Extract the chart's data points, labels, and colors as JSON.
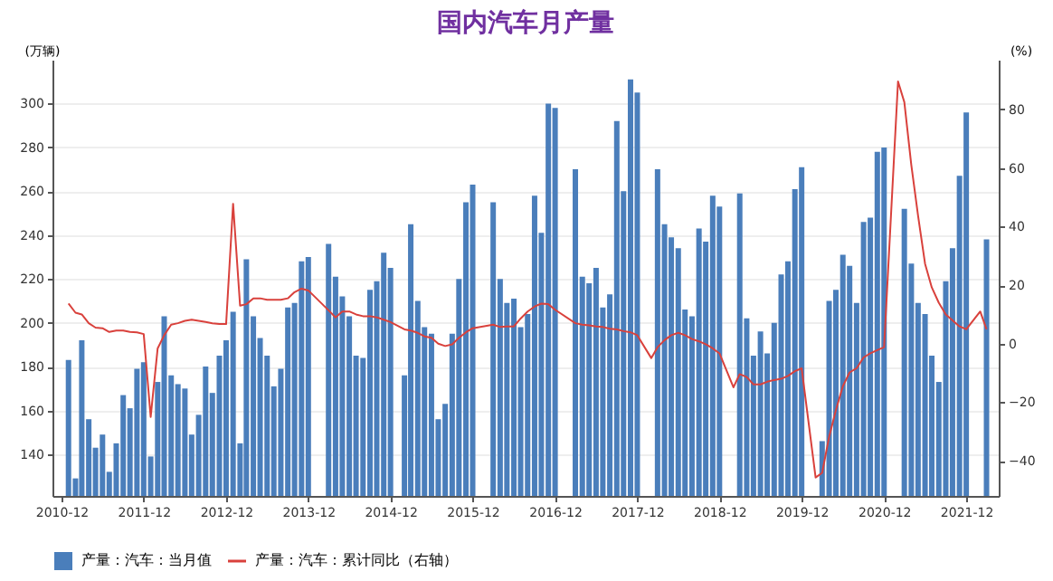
{
  "chart_data": {
    "type": "bar",
    "title": "国内汽车月产量",
    "ylabel": "(万辆)",
    "y2label": "(%)",
    "xlim": [
      "2010-12-01",
      "2022-03-15"
    ],
    "xticks": [
      {
        "value": "2010-12",
        "label": "2010-12"
      },
      {
        "value": "2011-12",
        "label": "2011-12"
      },
      {
        "value": "2012-12",
        "label": "2012-12"
      },
      {
        "value": "2013-12",
        "label": "2013-12"
      },
      {
        "value": "2014-12",
        "label": "2014-12"
      },
      {
        "value": "2015-12",
        "label": "2015-12"
      },
      {
        "value": "2016-12",
        "label": "2016-12"
      },
      {
        "value": "2017-12",
        "label": "2017-12"
      },
      {
        "value": "2018-12",
        "label": "2018-12"
      },
      {
        "value": "2019-12",
        "label": "2019-12"
      },
      {
        "value": "2020-12",
        "label": "2020-12"
      },
      {
        "value": "2021-12",
        "label": "2021-12"
      }
    ],
    "ylim": [
      121,
      320
    ],
    "yticks": [
      140,
      160,
      180,
      200,
      220,
      240,
      260,
      280,
      300
    ],
    "y2lim": [
      -52,
      97
    ],
    "y2ticks": [
      -40,
      -20,
      0,
      20,
      40,
      60,
      80
    ],
    "grid": "y",
    "legend": "bottom",
    "series": [
      {
        "name": "产量：汽车：当月值",
        "color": "#4a7ebb",
        "x": [
          "2011-01",
          "2011-02",
          "2011-03",
          "2011-04",
          "2011-05",
          "2011-06",
          "2011-07",
          "2011-08",
          "2011-09",
          "2011-10",
          "2011-11",
          "2011-12",
          "2012-01",
          "2012-02",
          "2012-03",
          "2012-04",
          "2012-05",
          "2012-06",
          "2012-07",
          "2012-08",
          "2012-09",
          "2012-10",
          "2012-11",
          "2012-12",
          "2013-01",
          "2013-02",
          "2013-03",
          "2013-04",
          "2013-05",
          "2013-06",
          "2013-07",
          "2013-08",
          "2013-09",
          "2013-10",
          "2013-11",
          "2013-12",
          "2014-03",
          "2014-04",
          "2014-05",
          "2014-06",
          "2014-07",
          "2014-08",
          "2014-09",
          "2014-10",
          "2014-11",
          "2014-12",
          "2015-02",
          "2015-03",
          "2015-04",
          "2015-05",
          "2015-06",
          "2015-07",
          "2015-08",
          "2015-09",
          "2015-10",
          "2015-11",
          "2015-12",
          "2016-03",
          "2016-04",
          "2016-05",
          "2016-06",
          "2016-07",
          "2016-08",
          "2016-09",
          "2016-10",
          "2016-11",
          "2016-12",
          "2017-03",
          "2017-04",
          "2017-05",
          "2017-06",
          "2017-07",
          "2017-08",
          "2017-09",
          "2017-10",
          "2017-11",
          "2017-12",
          "2018-03",
          "2018-04",
          "2018-05",
          "2018-06",
          "2018-07",
          "2018-08",
          "2018-09",
          "2018-10",
          "2018-11",
          "2018-12",
          "2019-03",
          "2019-04",
          "2019-05",
          "2019-06",
          "2019-07",
          "2019-08",
          "2019-09",
          "2019-10",
          "2019-11",
          "2019-12",
          "2020-03",
          "2020-04",
          "2020-05",
          "2020-06",
          "2020-07",
          "2020-08",
          "2020-09",
          "2020-10",
          "2020-11",
          "2020-12",
          "2021-03",
          "2021-04",
          "2021-05",
          "2021-06",
          "2021-07",
          "2021-08",
          "2021-09",
          "2021-10",
          "2021-11",
          "2021-12",
          "2022-03"
        ],
        "values": [
          183,
          129,
          192,
          156,
          143,
          149,
          132,
          145,
          167,
          161,
          179,
          182,
          139,
          173,
          203,
          176,
          172,
          170,
          149,
          158,
          180,
          168,
          185,
          192,
          205,
          145,
          229,
          203,
          193,
          185,
          171,
          179,
          207,
          209,
          228,
          230,
          236,
          221,
          212,
          203,
          185,
          184,
          215,
          219,
          232,
          225,
          176,
          245,
          210,
          198,
          195,
          156,
          163,
          195,
          220,
          255,
          263,
          255,
          220,
          209,
          211,
          198,
          204,
          258,
          241,
          300,
          298,
          270,
          221,
          218,
          225,
          207,
          213,
          292,
          260,
          311,
          305,
          270,
          245,
          239,
          234,
          206,
          203,
          243,
          237,
          258,
          253,
          259,
          202,
          185,
          196,
          186,
          200,
          222,
          228,
          261,
          271,
          146,
          210,
          215,
          231,
          226,
          209,
          246,
          248,
          278,
          280,
          252,
          227,
          209,
          204,
          185,
          173,
          219,
          234,
          267,
          296,
          238
        ]
      },
      {
        "name": "产量：汽车：累计同比（右轴）",
        "type": "line",
        "axis": "y2",
        "color": "#d9413c",
        "x": [
          "2011-01",
          "2011-02",
          "2011-03",
          "2011-04",
          "2011-05",
          "2011-06",
          "2011-07",
          "2011-08",
          "2011-09",
          "2011-10",
          "2011-11",
          "2011-12",
          "2012-01",
          "2012-02",
          "2012-03",
          "2012-04",
          "2012-05",
          "2012-06",
          "2012-07",
          "2012-08",
          "2012-09",
          "2012-10",
          "2012-11",
          "2012-12",
          "2013-01",
          "2013-02",
          "2013-03",
          "2013-04",
          "2013-05",
          "2013-06",
          "2013-07",
          "2013-08",
          "2013-09",
          "2013-10",
          "2013-11",
          "2013-12",
          "2014-03",
          "2014-04",
          "2014-05",
          "2014-06",
          "2014-07",
          "2014-08",
          "2014-09",
          "2014-10",
          "2014-11",
          "2014-12",
          "2015-02",
          "2015-03",
          "2015-04",
          "2015-05",
          "2015-06",
          "2015-07",
          "2015-08",
          "2015-09",
          "2015-10",
          "2015-11",
          "2015-12",
          "2016-03",
          "2016-04",
          "2016-05",
          "2016-06",
          "2016-07",
          "2016-08",
          "2016-09",
          "2016-10",
          "2016-11",
          "2016-12",
          "2017-03",
          "2017-04",
          "2017-05",
          "2017-06",
          "2017-07",
          "2017-08",
          "2017-09",
          "2017-10",
          "2017-11",
          "2017-12",
          "2018-02",
          "2018-03",
          "2018-04",
          "2018-05",
          "2018-06",
          "2018-07",
          "2018-08",
          "2018-09",
          "2018-10",
          "2018-11",
          "2018-12",
          "2019-02",
          "2019-03",
          "2019-04",
          "2019-05",
          "2019-06",
          "2019-07",
          "2019-08",
          "2019-09",
          "2019-10",
          "2019-11",
          "2019-12",
          "2020-02",
          "2020-03",
          "2020-04",
          "2020-05",
          "2020-06",
          "2020-07",
          "2020-08",
          "2020-09",
          "2020-10",
          "2020-11",
          "2020-12",
          "2021-02",
          "2021-03",
          "2021-04",
          "2021-05",
          "2021-06",
          "2021-07",
          "2021-08",
          "2021-09",
          "2021-10",
          "2021-11",
          "2021-12",
          "2022-02",
          "2022-03"
        ],
        "values": [
          13.7,
          10.6,
          10,
          7,
          5.5,
          5.3,
          4,
          4.5,
          4.5,
          4,
          3.9,
          3.3,
          -25,
          -1.6,
          2.9,
          6.5,
          7,
          7.8,
          8.2,
          7.8,
          7.4,
          7,
          6.7,
          6.7,
          47.8,
          13,
          13.5,
          15.5,
          15.5,
          15,
          15,
          15,
          15.5,
          17.6,
          18.8,
          18.2,
          11.4,
          9,
          11,
          11,
          10,
          9.4,
          9.4,
          9,
          8.2,
          7.4,
          4.9,
          4.5,
          3.7,
          2.5,
          2,
          0,
          -0.8,
          -0.2,
          2,
          3.9,
          5.3,
          6.5,
          5.7,
          5.9,
          5.9,
          8.6,
          11,
          12.7,
          13.7,
          13.5,
          11.6,
          7,
          6.5,
          6.3,
          5.9,
          5.7,
          5.1,
          4.9,
          4.3,
          3.9,
          2.9,
          -4.9,
          -1.2,
          1.2,
          2.9,
          3.7,
          2.9,
          1.6,
          0.8,
          -0.2,
          -1.6,
          -3.3,
          -14.9,
          -10.4,
          -11.4,
          -13.9,
          -13.9,
          -13,
          -12.4,
          -12,
          -11,
          -9.4,
          -8.4,
          -45.7,
          -44.1,
          -31.8,
          -22.7,
          -14.5,
          -9.8,
          -8.4,
          -4.7,
          -3.3,
          -2.2,
          -1.2,
          89.6,
          82.5,
          61,
          43.7,
          27.3,
          19.2,
          14,
          10,
          8,
          5.9,
          4.9,
          11,
          4.9
        ]
      }
    ]
  }
}
